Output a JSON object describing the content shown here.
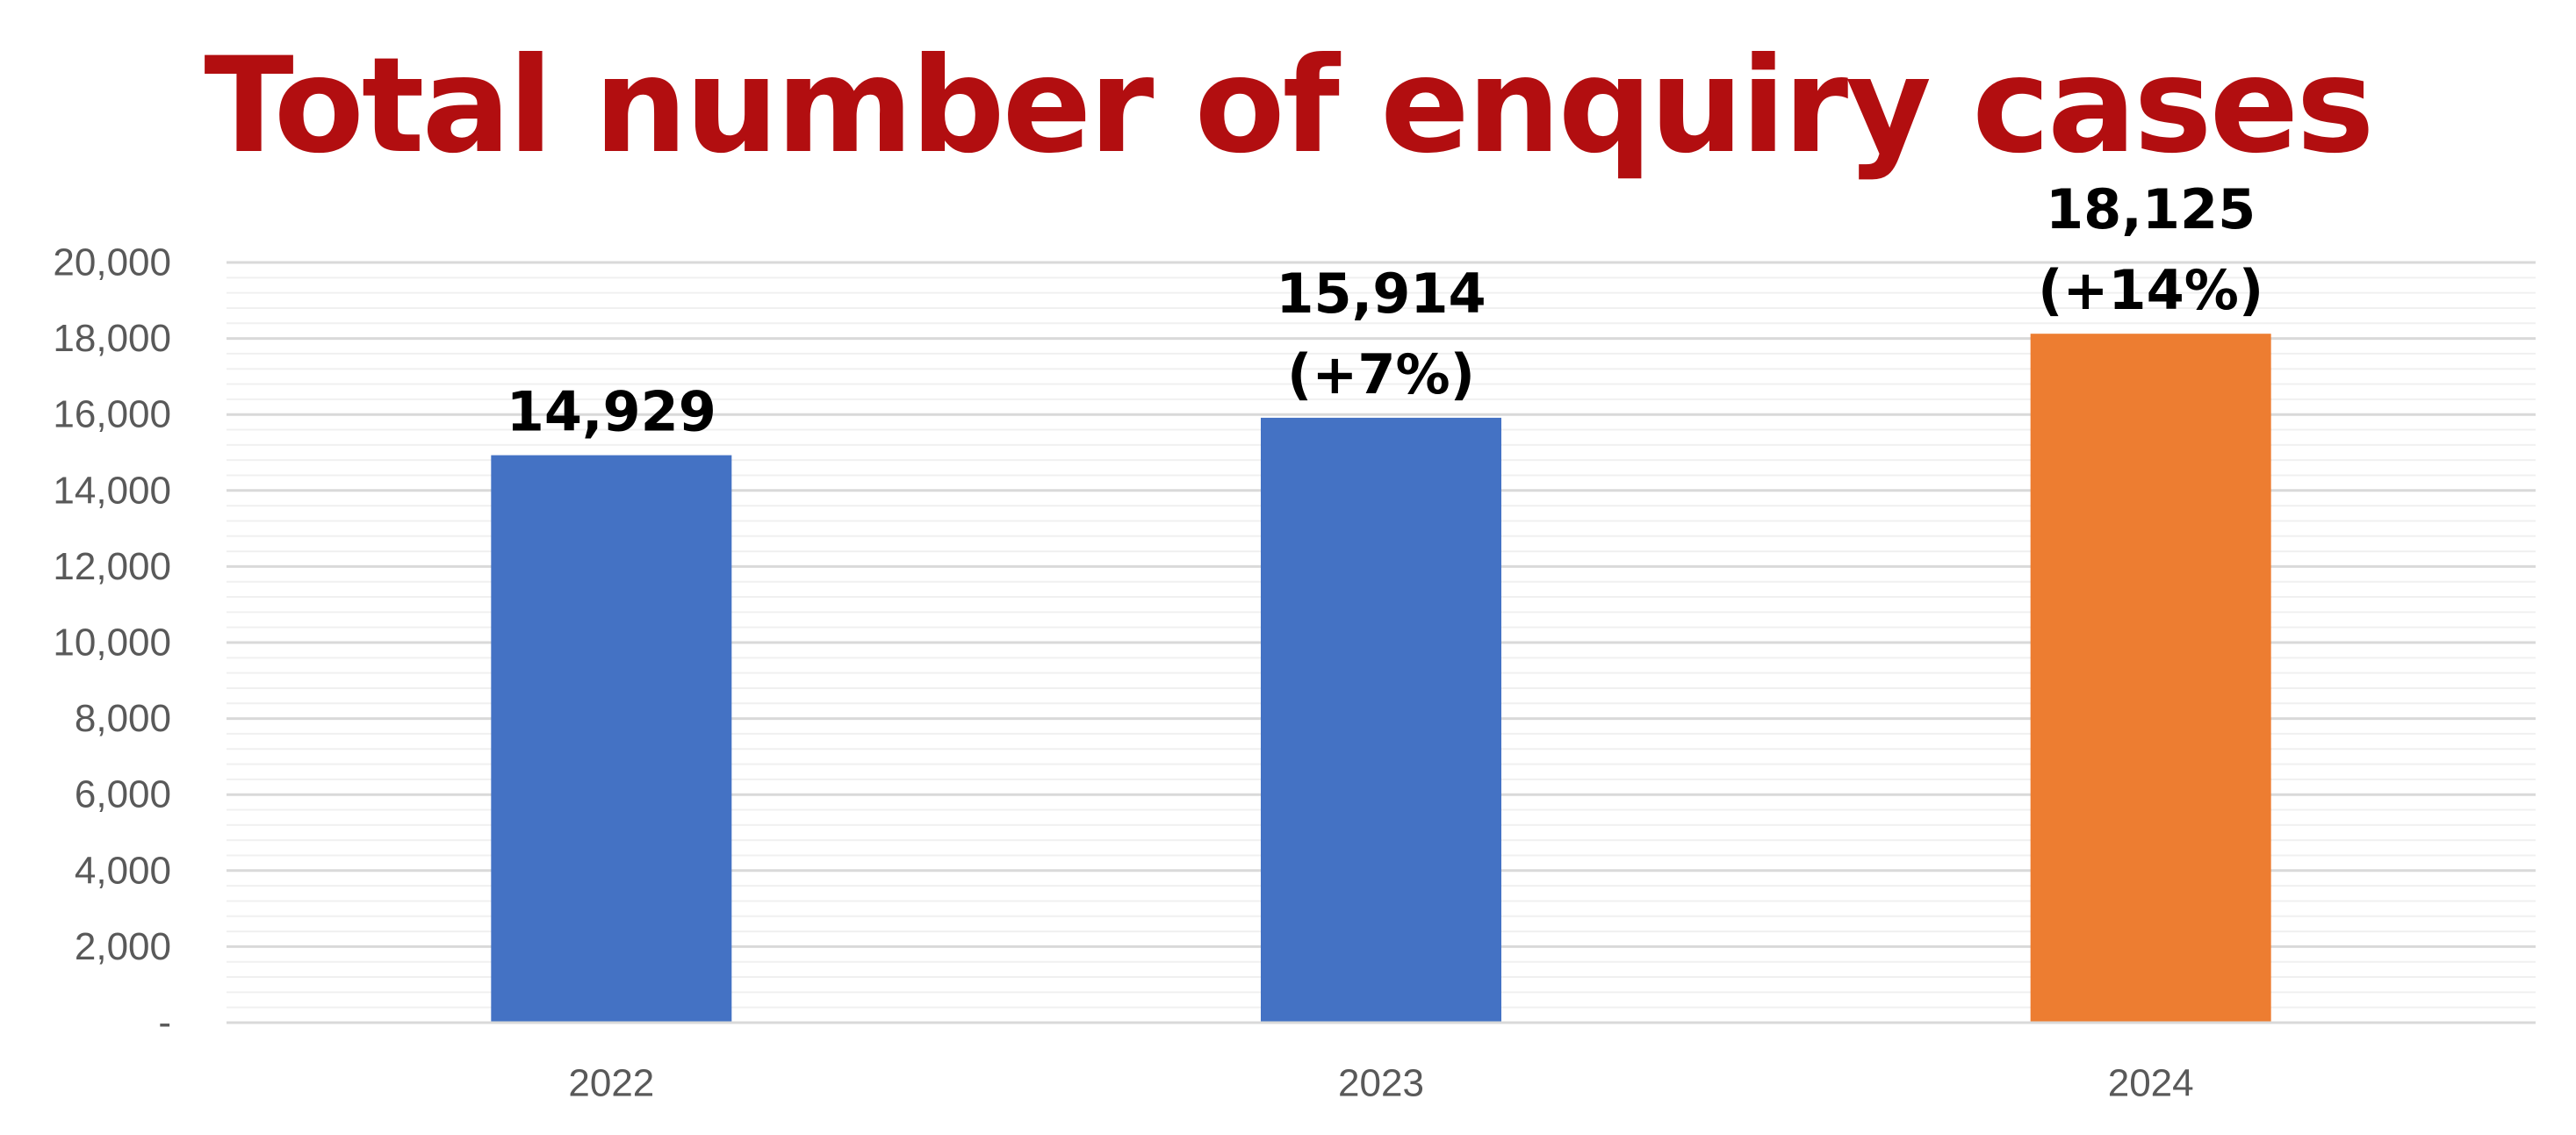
{
  "chart_data": {
    "type": "bar",
    "title": "Total number of enquiry cases",
    "xlabel": "",
    "ylabel": "",
    "categories": [
      "2022",
      "2023",
      "2024"
    ],
    "values": [
      14929,
      15914,
      18125
    ],
    "data_labels": [
      [
        "14,929"
      ],
      [
        "15,914",
        "(+7%)"
      ],
      [
        "18,125",
        "(+14%)"
      ]
    ],
    "bar_colors": [
      "#4472C4",
      "#4472C4",
      "#ED7D31"
    ],
    "ylim": [
      0,
      20000
    ],
    "y_major_step": 2000,
    "y_minor_step": 400,
    "y_tick_labels": [
      "-",
      "2,000",
      "4,000",
      "6,000",
      "8,000",
      "10,000",
      "12,000",
      "14,000",
      "16,000",
      "18,000",
      "20,000"
    ],
    "grid": true,
    "legend": "none"
  },
  "colors": {
    "title": "#B20E10",
    "major_grid": "#D9D9D9",
    "minor_grid": "#F0F0F0",
    "axis_line": "#D9D9D9",
    "tick_label": "#595959",
    "data_label": "#000000"
  }
}
